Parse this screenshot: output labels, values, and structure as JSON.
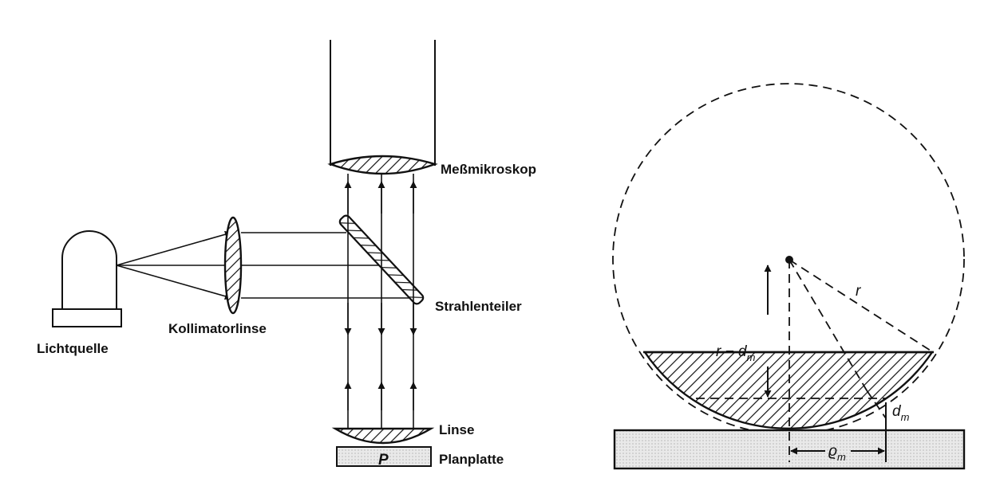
{
  "labels": {
    "light_source": "Lichtquelle",
    "collimator": "Kollimatorlinse",
    "microscope": "Meßmikroskop",
    "beam_splitter": "Strahlenteiler",
    "lens": "Linse",
    "flat_plate": "Planplatte",
    "contact_point": "P"
  },
  "geometry_labels": {
    "radius": "r",
    "r_minus_d": "r − d",
    "d_sub": "m",
    "d": "d",
    "rho": "ϱ",
    "rho_sub": "m"
  },
  "colors": {
    "ink": "#111111",
    "paper": "#ffffff",
    "plate_fill": "#e6e6e6"
  }
}
